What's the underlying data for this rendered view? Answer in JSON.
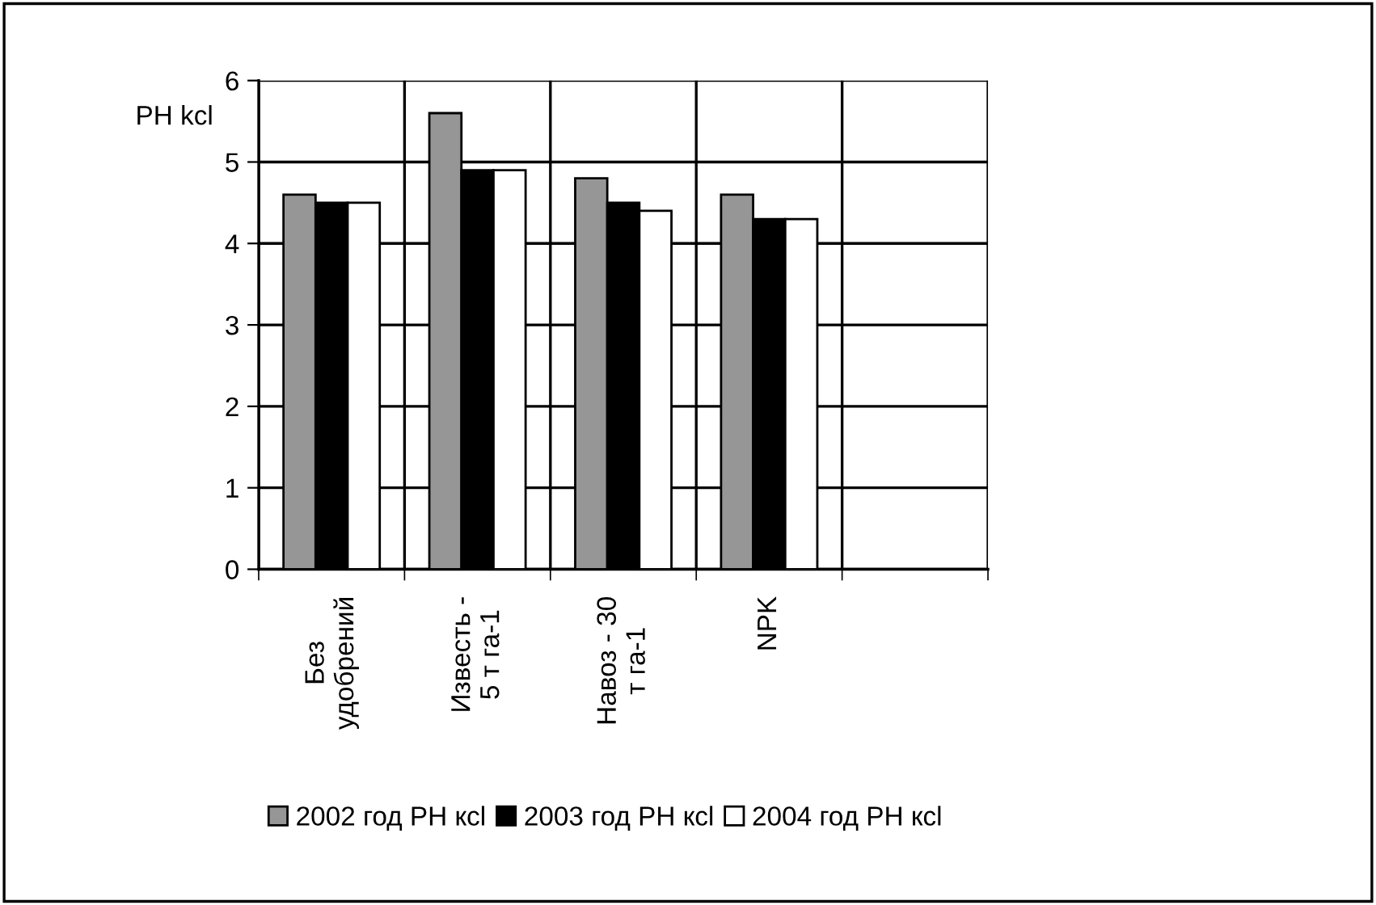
{
  "chart_data": {
    "type": "bar",
    "ylabel": "PH kcl",
    "categories": [
      "Без\nудобрений",
      "Известь -\n5 т га-1",
      "Навоз - 30\nт га-1",
      "NPK",
      null
    ],
    "series": [
      {
        "name": "2002 год PH кcl",
        "color": "#969696",
        "values": [
          4.6,
          5.6,
          4.8,
          4.6,
          null
        ]
      },
      {
        "name": "2003 год PH кcl",
        "color": "#000000",
        "values": [
          4.5,
          4.9,
          4.5,
          4.3,
          null
        ]
      },
      {
        "name": "2004 год PH кcl",
        "color": "#ffffff",
        "values": [
          4.5,
          4.9,
          4.4,
          4.3,
          null
        ]
      }
    ],
    "ylim": [
      0,
      6
    ],
    "yticks": [
      0,
      1,
      2,
      3,
      4,
      5,
      6
    ],
    "grid": true,
    "legend": "bottom"
  }
}
